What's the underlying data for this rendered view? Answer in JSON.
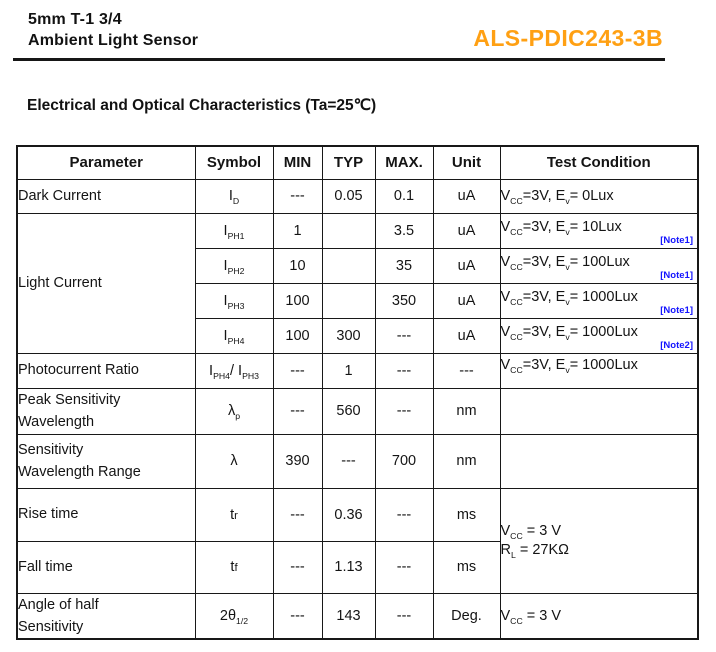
{
  "colors": {
    "accent-orange": "#FFA013",
    "note-blue": "#1414FF",
    "ink": "#121212"
  },
  "header": {
    "title_line1": "5mm T-1 3/4",
    "title_line2": "Ambient Light Sensor",
    "part_number": "ALS-PDIC243-3B"
  },
  "section": {
    "heading": "Electrical and Optical Characteristics (Ta=25℃)"
  },
  "table": {
    "columns": [
      "Parameter",
      "Symbol",
      "MIN",
      "TYP",
      "MAX.",
      "Unit",
      "Test Condition"
    ],
    "rows": [
      {
        "param": "Dark Current",
        "sym": [
          {
            "t": "I"
          },
          {
            "s": "D"
          }
        ],
        "min": "---",
        "typ": "0.05",
        "max": "0.1",
        "unit": "uA",
        "cond": [
          {
            "t": "V"
          },
          {
            "s": "CC"
          },
          {
            "t": "=3V, E"
          },
          {
            "s": "v"
          },
          {
            "t": "= 0Lux"
          }
        ]
      },
      {
        "param": "Light Current",
        "sym": [
          {
            "t": "I"
          },
          {
            "s": "PH1"
          }
        ],
        "min": "1",
        "typ": "",
        "max": "3.5",
        "unit": "uA",
        "cond": [
          {
            "t": "V"
          },
          {
            "s": "CC"
          },
          {
            "t": "=3V, E"
          },
          {
            "s": "v"
          },
          {
            "t": "= 10Lux"
          }
        ],
        "note": "[Note1]"
      },
      {
        "sym": [
          {
            "t": "I"
          },
          {
            "s": "PH2"
          }
        ],
        "min": "10",
        "typ": "",
        "max": "35",
        "unit": "uA",
        "cond": [
          {
            "t": "V"
          },
          {
            "s": "CC"
          },
          {
            "t": "=3V, E"
          },
          {
            "s": "v"
          },
          {
            "t": "= 100Lux"
          }
        ],
        "note": "[Note1]"
      },
      {
        "sym": [
          {
            "t": "I"
          },
          {
            "s": "PH3"
          }
        ],
        "min": "100",
        "typ": "",
        "max": "350",
        "unit": "uA",
        "cond": [
          {
            "t": "V"
          },
          {
            "s": "CC"
          },
          {
            "t": "=3V, E"
          },
          {
            "s": "v"
          },
          {
            "t": "= 1000Lux"
          }
        ],
        "note": "[Note1]"
      },
      {
        "sym": [
          {
            "t": "I"
          },
          {
            "s": "PH4"
          }
        ],
        "min": "100",
        "typ": "300",
        "max": "---",
        "unit": "uA",
        "cond": [
          {
            "t": "V"
          },
          {
            "s": "CC"
          },
          {
            "t": "=3V, E"
          },
          {
            "s": "v"
          },
          {
            "t": "= 1000Lux"
          }
        ],
        "note": "[Note2]"
      },
      {
        "param": "Photocurrent Ratio",
        "sym": [
          {
            "t": "I"
          },
          {
            "s": "PH4"
          },
          {
            "t": "/ I"
          },
          {
            "s": "PH3"
          }
        ],
        "min": "---",
        "typ": "1",
        "max": "---",
        "unit": "---",
        "cond": [
          {
            "t": "V"
          },
          {
            "s": "CC"
          },
          {
            "t": "=3V, E"
          },
          {
            "s": "v"
          },
          {
            "t": "= 1000Lux"
          }
        ]
      },
      {
        "param": "Peak Sensitivity\nWavelength",
        "sym": [
          {
            "t": "λ"
          },
          {
            "s": "p"
          }
        ],
        "min": "---",
        "typ": "560",
        "max": "---",
        "unit": "nm"
      },
      {
        "param": "Sensitivity\nWavelength Range",
        "sym": [
          {
            "t": "λ"
          }
        ],
        "min": "390",
        "typ": "---",
        "max": "700",
        "unit": "nm"
      },
      {
        "param": "Rise time",
        "sym": [
          {
            "t": "t"
          },
          {
            "sm": "r"
          }
        ],
        "min": "---",
        "typ": "0.36",
        "max": "---",
        "unit": "ms",
        "cond_lines": [
          [
            {
              "t": "V"
            },
            {
              "s": "CC"
            },
            {
              "t": " = 3 V"
            }
          ],
          [
            {
              "t": "R"
            },
            {
              "s": "L"
            },
            {
              "t": " = 27KΩ"
            }
          ]
        ]
      },
      {
        "param": "Fall time",
        "sym": [
          {
            "t": "t"
          },
          {
            "sm": "f"
          }
        ],
        "min": "---",
        "typ": "1.13",
        "max": "---",
        "unit": "ms"
      },
      {
        "param": "Angle of half\nSensitivity",
        "sym": [
          {
            "t": "2θ"
          },
          {
            "s": "1/2"
          }
        ],
        "min": "---",
        "typ": "143",
        "max": "---",
        "unit": "Deg.",
        "cond": [
          {
            "t": "V"
          },
          {
            "s": "CC"
          },
          {
            "t": " = 3 V"
          }
        ]
      }
    ]
  }
}
